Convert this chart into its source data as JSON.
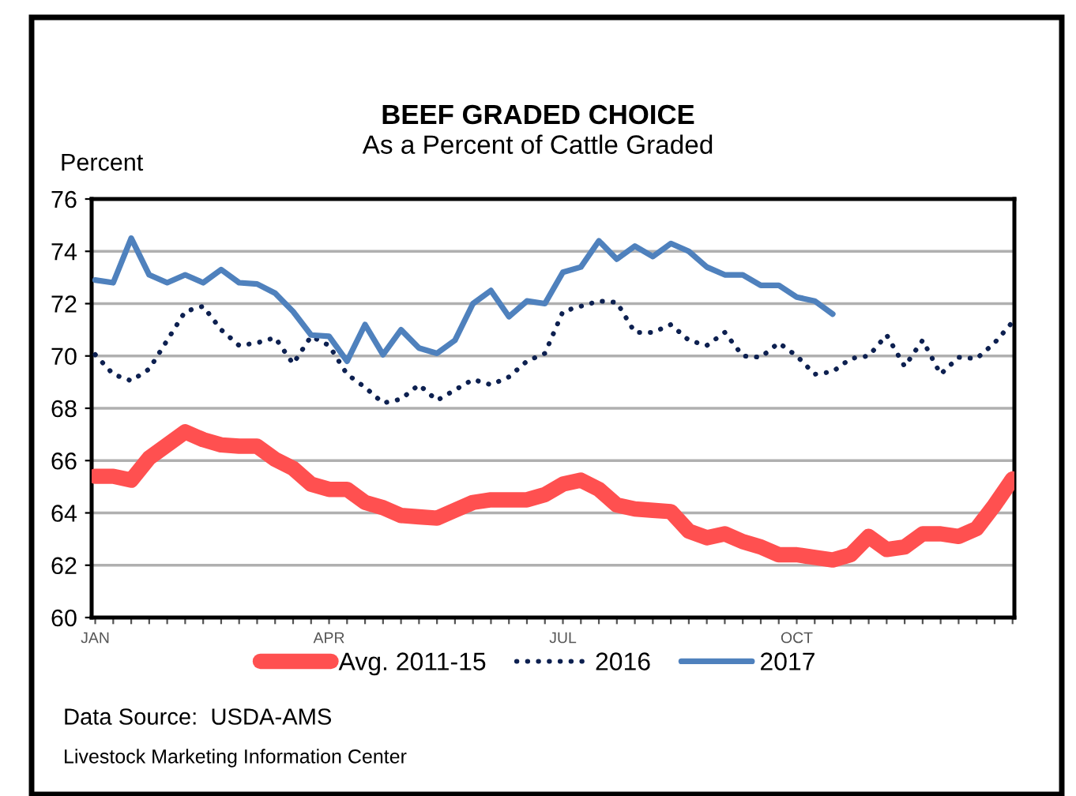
{
  "chart_data": {
    "type": "line",
    "title": "BEEF GRADED CHOICE",
    "subtitle": "As a Percent of Cattle Graded",
    "ylabel": "Percent",
    "categories": [
      "JAN",
      null,
      null,
      null,
      null,
      null,
      null,
      null,
      null,
      null,
      null,
      null,
      null,
      "APR",
      null,
      null,
      null,
      null,
      null,
      null,
      null,
      null,
      null,
      null,
      null,
      null,
      "JUL",
      null,
      null,
      null,
      null,
      null,
      null,
      null,
      null,
      null,
      null,
      null,
      null,
      "OCT",
      null,
      null,
      null,
      null,
      null,
      null,
      null,
      null,
      null,
      null,
      null,
      null
    ],
    "series": [
      {
        "name": "Avg. 2011-15",
        "color": "#ff5050",
        "line_style": "solid",
        "values": [
          65.4,
          65.4,
          65.25,
          66.1,
          66.6,
          67.1,
          66.8,
          66.6,
          66.55,
          66.55,
          66.05,
          65.7,
          65.1,
          64.9,
          64.9,
          64.4,
          64.2,
          63.9,
          63.85,
          63.8,
          64.1,
          64.4,
          64.5,
          64.5,
          64.5,
          64.7,
          65.1,
          65.25,
          64.9,
          64.3,
          64.15,
          64.1,
          64.05,
          63.3,
          63.05,
          63.2,
          62.9,
          62.7,
          62.4,
          62.4,
          62.3,
          62.2,
          62.4,
          63.1,
          62.6,
          62.7,
          63.2,
          63.2,
          63.1,
          63.4,
          64.3,
          65.3
        ]
      },
      {
        "name": "2016",
        "color": "#0d2050",
        "line_style": "dotted",
        "values": [
          70.05,
          69.3,
          69.05,
          69.5,
          70.6,
          71.7,
          71.9,
          71.0,
          70.4,
          70.5,
          70.7,
          69.7,
          70.75,
          70.4,
          69.3,
          68.8,
          68.2,
          68.35,
          68.9,
          68.3,
          68.7,
          69.1,
          68.9,
          69.2,
          69.8,
          70.1,
          71.7,
          71.9,
          72.1,
          72.05,
          70.9,
          70.9,
          71.2,
          70.6,
          70.4,
          70.9,
          70.0,
          69.95,
          70.5,
          70.0,
          69.3,
          69.4,
          69.9,
          70.0,
          70.8,
          69.6,
          70.6,
          69.3,
          69.95,
          69.9,
          70.5,
          71.3
        ]
      },
      {
        "name": "2017",
        "color": "#4f81bd",
        "line_style": "solid",
        "values": [
          72.9,
          72.8,
          74.5,
          73.1,
          72.8,
          73.1,
          72.8,
          73.3,
          72.8,
          72.75,
          72.4,
          71.7,
          70.8,
          70.75,
          69.8,
          71.2,
          70.05,
          71.0,
          70.3,
          70.1,
          70.6,
          72.0,
          72.5,
          71.5,
          72.1,
          72.0,
          73.2,
          73.4,
          74.4,
          73.7,
          74.2,
          73.8,
          74.3,
          74.0,
          73.4,
          73.1,
          73.1,
          72.7,
          72.7,
          72.25,
          72.1,
          71.6,
          null,
          null,
          null,
          null,
          null,
          null,
          null,
          null,
          null,
          null
        ]
      }
    ],
    "ylim": [
      60,
      76
    ],
    "yticks": [
      60,
      62,
      64,
      66,
      68,
      70,
      72,
      74,
      76
    ],
    "grid": "y",
    "legend": "bottom",
    "marker": "none",
    "annotations": [
      "Data Source:  USDA-AMS",
      "Livestock Marketing Information Center"
    ]
  }
}
